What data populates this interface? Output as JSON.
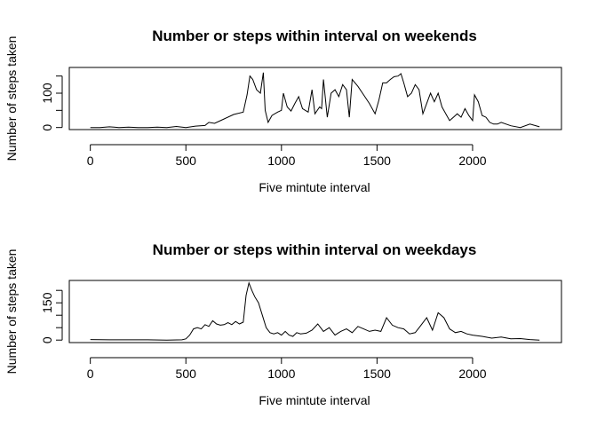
{
  "chart_data": [
    {
      "type": "line",
      "title": "Number or steps within interval on weekends",
      "xlabel": "Five mintute interval",
      "ylabel": "Number of steps taken",
      "xlim": [
        -110,
        2465
      ],
      "ylim": [
        -6,
        175
      ],
      "xticks": [
        0,
        500,
        1000,
        1500,
        2000
      ],
      "yticks": [
        0,
        100
      ],
      "yminor": [
        50,
        150
      ],
      "color": "#000000",
      "grid": false,
      "series": [
        {
          "x": [
            0,
            50,
            100,
            150,
            200,
            250,
            300,
            350,
            400,
            450,
            500,
            550,
            600,
            620,
            650,
            700,
            750,
            800,
            820,
            835,
            850,
            870,
            890,
            905,
            915,
            930,
            950,
            980,
            1000,
            1010,
            1030,
            1050,
            1070,
            1090,
            1110,
            1140,
            1160,
            1175,
            1200,
            1210,
            1220,
            1240,
            1260,
            1280,
            1300,
            1320,
            1340,
            1355,
            1370,
            1400,
            1430,
            1460,
            1490,
            1510,
            1530,
            1550,
            1570,
            1590,
            1610,
            1625,
            1640,
            1660,
            1680,
            1700,
            1720,
            1740,
            1760,
            1780,
            1800,
            1820,
            1840,
            1860,
            1880,
            1900,
            1920,
            1940,
            1960,
            1980,
            2000,
            2010,
            2030,
            2050,
            2070,
            2090,
            2110,
            2130,
            2150,
            2200,
            2250,
            2300,
            2350
          ],
          "y": [
            0,
            0,
            2,
            0,
            1,
            0,
            0,
            1,
            0,
            3,
            0,
            4,
            6,
            15,
            12,
            25,
            38,
            45,
            95,
            150,
            140,
            110,
            100,
            160,
            50,
            15,
            35,
            45,
            50,
            100,
            60,
            48,
            70,
            90,
            55,
            45,
            110,
            40,
            60,
            55,
            140,
            30,
            100,
            110,
            90,
            125,
            110,
            30,
            140,
            120,
            95,
            70,
            40,
            80,
            130,
            130,
            140,
            148,
            150,
            157,
            130,
            90,
            100,
            125,
            110,
            40,
            70,
            100,
            75,
            100,
            60,
            40,
            20,
            30,
            40,
            30,
            55,
            35,
            20,
            95,
            75,
            35,
            30,
            15,
            10,
            10,
            15,
            5,
            0,
            10,
            2
          ]
        }
      ]
    },
    {
      "type": "line",
      "title": "Number or steps within interval on weekdays",
      "xlabel": "Five mintute interval",
      "ylabel": "Number of steps taken",
      "xlim": [
        -110,
        2465
      ],
      "ylim": [
        -10,
        240
      ],
      "xticks": [
        0,
        500,
        1000,
        1500,
        2000
      ],
      "yticks": [
        0,
        150
      ],
      "yminor": [
        50,
        100,
        200
      ],
      "color": "#000000",
      "grid": false,
      "series": [
        {
          "x": [
            0,
            100,
            200,
            300,
            400,
            480,
            500,
            520,
            540,
            560,
            580,
            600,
            620,
            640,
            660,
            680,
            700,
            720,
            740,
            760,
            780,
            800,
            815,
            830,
            845,
            860,
            880,
            900,
            920,
            940,
            960,
            980,
            1000,
            1020,
            1040,
            1060,
            1080,
            1100,
            1130,
            1160,
            1190,
            1220,
            1250,
            1280,
            1310,
            1340,
            1370,
            1400,
            1430,
            1460,
            1490,
            1520,
            1550,
            1580,
            1610,
            1640,
            1670,
            1700,
            1730,
            1760,
            1790,
            1820,
            1850,
            1880,
            1910,
            1940,
            1970,
            2000,
            2050,
            2100,
            2150,
            2200,
            2250,
            2300,
            2350
          ],
          "y": [
            2,
            1,
            1,
            1,
            0,
            1,
            5,
            20,
            45,
            50,
            45,
            62,
            55,
            78,
            65,
            60,
            62,
            70,
            62,
            75,
            65,
            72,
            180,
            230,
            200,
            175,
            150,
            100,
            50,
            30,
            25,
            30,
            20,
            35,
            20,
            15,
            30,
            25,
            28,
            40,
            65,
            35,
            50,
            20,
            35,
            45,
            30,
            55,
            45,
            35,
            40,
            35,
            90,
            60,
            50,
            45,
            25,
            30,
            60,
            90,
            40,
            110,
            90,
            45,
            30,
            35,
            25,
            20,
            15,
            8,
            12,
            5,
            6,
            2,
            0
          ]
        }
      ]
    }
  ]
}
